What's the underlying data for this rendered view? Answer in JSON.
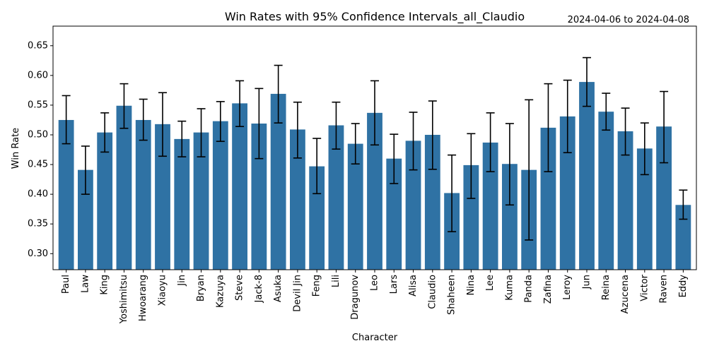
{
  "chart_data": {
    "type": "bar",
    "title": "Win Rates with 95% Confidence Intervals_all_Claudio",
    "date_range": "2024-04-06 to 2024-04-08",
    "xlabel": "Character",
    "ylabel": "Win Rate",
    "ylim": [
      0.273,
      0.683
    ],
    "yticks": [
      0.3,
      0.35,
      0.4,
      0.45,
      0.5,
      0.55,
      0.6,
      0.65
    ],
    "ytick_labels": [
      "0.30",
      "0.35",
      "0.40",
      "0.45",
      "0.50",
      "0.55",
      "0.60",
      "0.65"
    ],
    "grid": false,
    "bar_color": "#2f72a4",
    "error_color": "#000000",
    "categories": [
      "Paul",
      "Law",
      "King",
      "Yoshimitsu",
      "Hwoarang",
      "Xiaoyu",
      "Jin",
      "Bryan",
      "Kazuya",
      "Steve",
      "Jack-8",
      "Asuka",
      "Devil Jin",
      "Feng",
      "Lili",
      "Dragunov",
      "Leo",
      "Lars",
      "Alisa",
      "Claudio",
      "Shaheen",
      "Nina",
      "Lee",
      "Kuma",
      "Panda",
      "Zafina",
      "Leroy",
      "Jun",
      "Reina",
      "Azucena",
      "Victor",
      "Raven",
      "Eddy"
    ],
    "values": [
      0.525,
      0.441,
      0.504,
      0.549,
      0.525,
      0.518,
      0.493,
      0.504,
      0.523,
      0.553,
      0.519,
      0.569,
      0.509,
      0.447,
      0.516,
      0.485,
      0.537,
      0.46,
      0.49,
      0.5,
      0.402,
      0.449,
      0.487,
      0.451,
      0.441,
      0.512,
      0.531,
      0.589,
      0.539,
      0.506,
      0.477,
      0.514,
      0.382
    ],
    "ci_low": [
      0.485,
      0.4,
      0.471,
      0.511,
      0.491,
      0.464,
      0.463,
      0.463,
      0.489,
      0.514,
      0.46,
      0.52,
      0.461,
      0.401,
      0.476,
      0.451,
      0.483,
      0.418,
      0.441,
      0.442,
      0.337,
      0.393,
      0.438,
      0.382,
      0.323,
      0.438,
      0.47,
      0.548,
      0.508,
      0.466,
      0.433,
      0.453,
      0.358
    ],
    "ci_high": [
      0.566,
      0.481,
      0.537,
      0.586,
      0.56,
      0.571,
      0.523,
      0.544,
      0.556,
      0.591,
      0.578,
      0.617,
      0.555,
      0.494,
      0.555,
      0.519,
      0.591,
      0.501,
      0.538,
      0.557,
      0.466,
      0.502,
      0.537,
      0.519,
      0.559,
      0.586,
      0.592,
      0.63,
      0.57,
      0.545,
      0.52,
      0.573,
      0.407
    ]
  }
}
